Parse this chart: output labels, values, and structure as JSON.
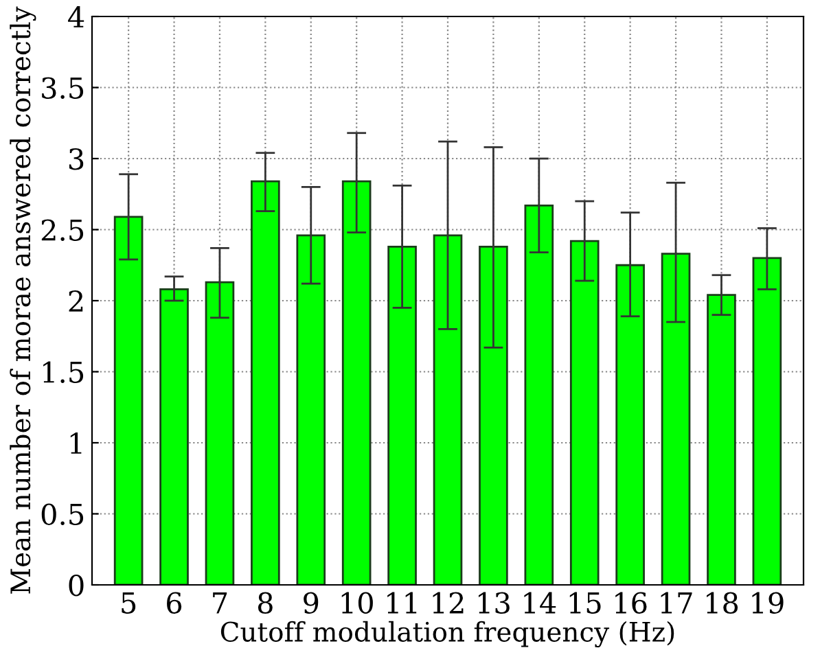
{
  "chart_data": {
    "type": "bar",
    "categories": [
      "5",
      "6",
      "7",
      "8",
      "9",
      "10",
      "11",
      "12",
      "13",
      "14",
      "15",
      "16",
      "17",
      "18",
      "19"
    ],
    "values": [
      2.59,
      2.08,
      2.13,
      2.84,
      2.46,
      2.84,
      2.38,
      2.46,
      2.38,
      2.67,
      2.42,
      2.25,
      2.33,
      2.04,
      2.3
    ],
    "errors": [
      [
        2.29,
        2.89
      ],
      [
        2.0,
        2.17
      ],
      [
        1.88,
        2.37
      ],
      [
        2.63,
        3.04
      ],
      [
        2.12,
        2.8
      ],
      [
        2.48,
        3.18
      ],
      [
        1.95,
        2.81
      ],
      [
        1.8,
        3.12
      ],
      [
        1.67,
        3.08
      ],
      [
        2.34,
        3.0
      ],
      [
        2.14,
        2.7
      ],
      [
        1.89,
        2.62
      ],
      [
        1.85,
        2.83
      ],
      [
        1.9,
        2.18
      ],
      [
        2.08,
        2.51
      ]
    ],
    "color": "#00ff00",
    "xlabel": "Cutoff modulation frequency (Hz)",
    "ylabel": "Mean number of morae answered correctly",
    "ylim": [
      0,
      4
    ],
    "yticks": [
      0,
      0.5,
      1,
      1.5,
      2,
      2.5,
      3,
      3.5,
      4
    ],
    "grid": true
  }
}
